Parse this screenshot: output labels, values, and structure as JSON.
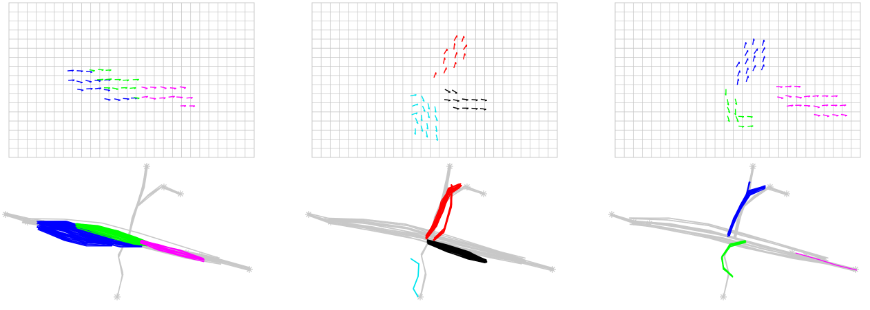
{
  "colors": {
    "grid": "#c8c8c8",
    "background_tracks": "#c8c8c8",
    "blue": "#0000ff",
    "green": "#00ff00",
    "magenta": "#ff00ff",
    "red": "#ff0000",
    "black": "#000000",
    "cyan": "#00e5ee"
  },
  "panels": [
    {
      "id": "1",
      "clusters": [
        {
          "color": "blue",
          "heading": "east"
        },
        {
          "color": "green",
          "heading": "east"
        },
        {
          "color": "magenta",
          "heading": "east"
        }
      ]
    },
    {
      "id": "2",
      "clusters": [
        {
          "color": "red",
          "heading": "north"
        },
        {
          "color": "black",
          "heading": "east"
        },
        {
          "color": "cyan",
          "heading": "south"
        }
      ]
    },
    {
      "id": "3",
      "clusters": [
        {
          "color": "blue",
          "heading": "north"
        },
        {
          "color": "green",
          "heading": "south"
        },
        {
          "color": "magenta",
          "heading": "east"
        }
      ]
    }
  ],
  "icons": {
    "endpoint": "asterisk-marker-icon"
  }
}
